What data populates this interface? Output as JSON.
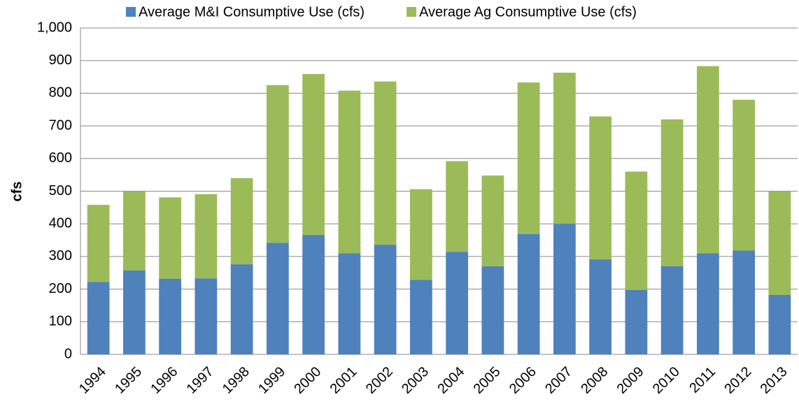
{
  "chart_data": {
    "type": "stacked_bar",
    "y_label": "cfs",
    "categories": [
      "1994",
      "1995",
      "1996",
      "1997",
      "1998",
      "1999",
      "2000",
      "2001",
      "2002",
      "2003",
      "2004",
      "2005",
      "2006",
      "2007",
      "2008",
      "2009",
      "2010",
      "2011",
      "2012",
      "2013"
    ],
    "series": [
      {
        "name": "Average M&I Consumptive Use (cfs)",
        "color": "#4f81bd",
        "values": [
          222,
          257,
          232,
          233,
          276,
          342,
          366,
          310,
          336,
          228,
          314,
          270,
          369,
          400,
          291,
          197,
          270,
          310,
          318,
          182
        ]
      },
      {
        "name": "Average Ag Consumptive Use (cfs)",
        "color": "#9bbb59",
        "values": [
          236,
          243,
          249,
          258,
          264,
          483,
          493,
          498,
          500,
          278,
          278,
          278,
          464,
          463,
          438,
          363,
          450,
          573,
          462,
          318
        ]
      }
    ],
    "ylim": [
      0,
      1000
    ],
    "yticks": [
      0,
      100,
      200,
      300,
      400,
      500,
      600,
      700,
      800,
      900,
      {
        "value": 1000,
        "label": "1,000"
      }
    ],
    "grid": true
  }
}
